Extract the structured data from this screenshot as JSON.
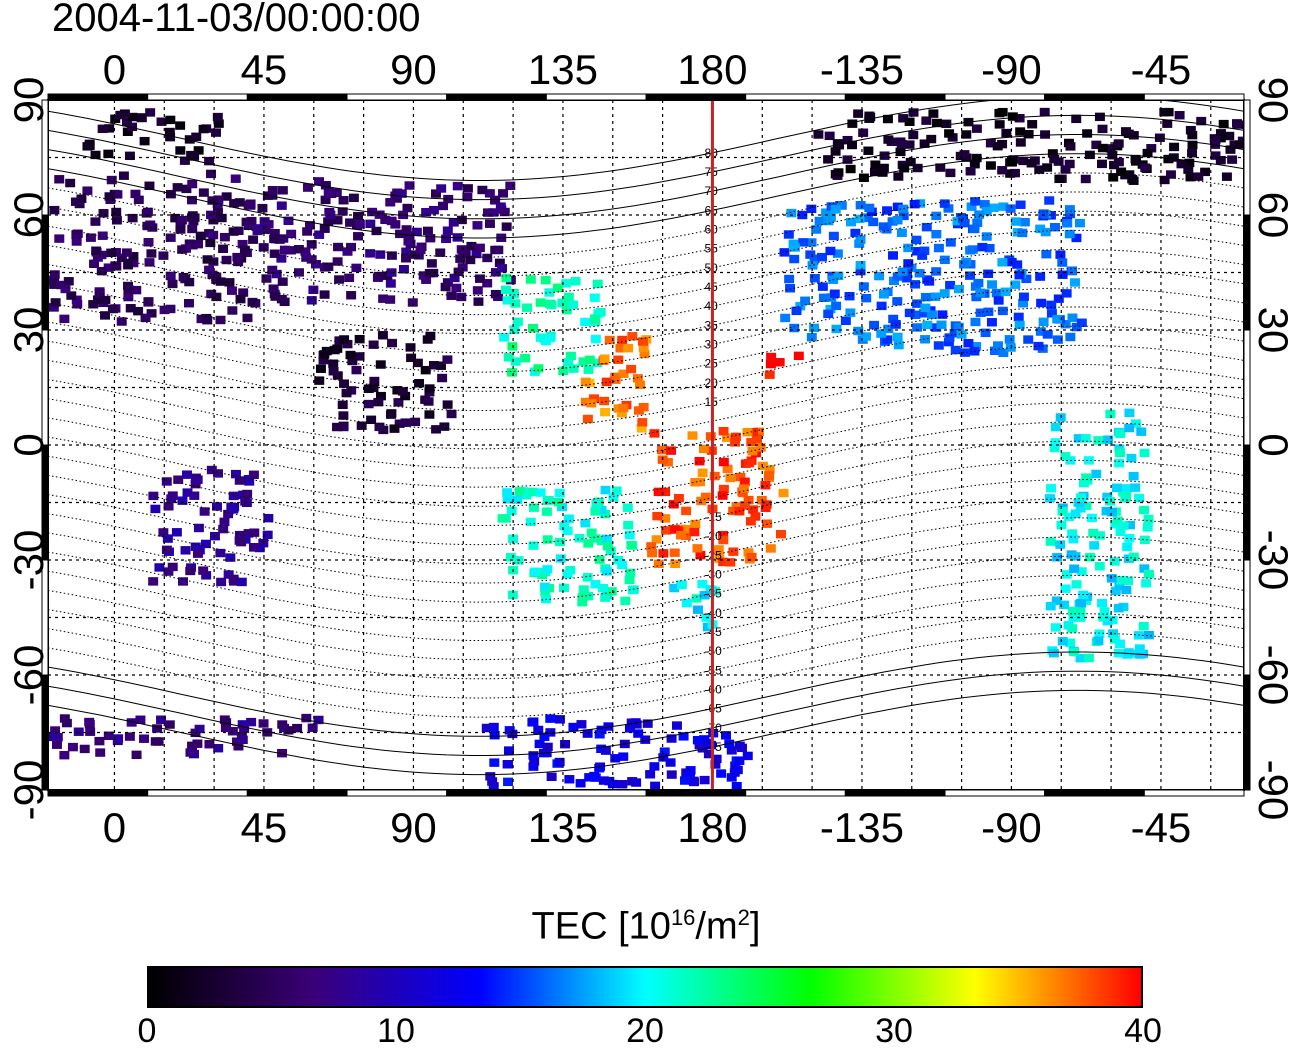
{
  "title": "2004-11-03/00:00:00",
  "top_lon_labels": [
    "0",
    "45",
    "90",
    "135",
    "180",
    "-135",
    "-90",
    "-45"
  ],
  "bottom_lon_labels": [
    "0",
    "45",
    "90",
    "135",
    "180",
    "-135",
    "-90",
    "-45"
  ],
  "lat_labels": [
    "90",
    "60",
    "30",
    "0",
    "-30",
    "-60",
    "-90"
  ],
  "colorbar": {
    "label_main": "TEC  [10",
    "label_sup1": "16",
    "label_mid": "/m",
    "label_sup2": "2",
    "label_end": "]",
    "ticks": [
      "0",
      "10",
      "20",
      "30",
      "40"
    ],
    "min": 0,
    "max": 40,
    "stops": [
      "#000000",
      "#3a0078",
      "#0000ff",
      "#00ffff",
      "#00ff00",
      "#ffff00",
      "#ff0000"
    ]
  },
  "magnetic_lat_labels": [
    "80",
    "75",
    "70",
    "65",
    "60",
    "55",
    "50",
    "45",
    "40",
    "35",
    "30",
    "25",
    "20",
    "15",
    "-15",
    "-20",
    "-25",
    "-30",
    "-35",
    "-40",
    "-45",
    "-50",
    "-55",
    "-60",
    "-65",
    "-70",
    "-75"
  ],
  "chart_data": {
    "type": "heatmap",
    "lon_range": [
      -20,
      340
    ],
    "lat_range": [
      -90,
      90
    ],
    "value_range": [
      0,
      40
    ],
    "grid": true,
    "meridian_marker_lon": 180,
    "regions": [
      {
        "lon": [
          -20,
          40
        ],
        "lat": [
          33,
          72
        ],
        "value": 5
      },
      {
        "lon": [
          -10,
          30
        ],
        "lat": [
          75,
          88
        ],
        "value": 2
      },
      {
        "lon": [
          40,
          120
        ],
        "lat": [
          38,
          70
        ],
        "value": 6
      },
      {
        "lon": [
          60,
          100
        ],
        "lat": [
          5,
          30
        ],
        "value": 3
      },
      {
        "lon": [
          10,
          45
        ],
        "lat": [
          -35,
          -5
        ],
        "value": 8
      },
      {
        "lon": [
          115,
          145
        ],
        "lat": [
          20,
          45
        ],
        "value": 22
      },
      {
        "lon": [
          140,
          160
        ],
        "lat": [
          5,
          30
        ],
        "value": 37
      },
      {
        "lon": [
          160,
          200
        ],
        "lat": [
          -30,
          5
        ],
        "value": 38
      },
      {
        "lon": [
          195,
          205
        ],
        "lat": [
          18,
          25
        ],
        "value": 39
      },
      {
        "lon": [
          115,
          155
        ],
        "lat": [
          -40,
          -10
        ],
        "value": 21
      },
      {
        "lon": [
          165,
          180
        ],
        "lat": [
          -48,
          -35
        ],
        "value": 20
      },
      {
        "lon": [
          200,
          290
        ],
        "lat": [
          25,
          65
        ],
        "value": 16
      },
      {
        "lon": [
          210,
          340
        ],
        "lat": [
          70,
          88
        ],
        "value": 2
      },
      {
        "lon": [
          280,
          310
        ],
        "lat": [
          -55,
          10
        ],
        "value": 20
      },
      {
        "lon": [
          -20,
          60
        ],
        "lat": [
          -80,
          -70
        ],
        "value": 7
      },
      {
        "lon": [
          110,
          190
        ],
        "lat": [
          -88,
          -70
        ],
        "value": 12
      }
    ]
  }
}
